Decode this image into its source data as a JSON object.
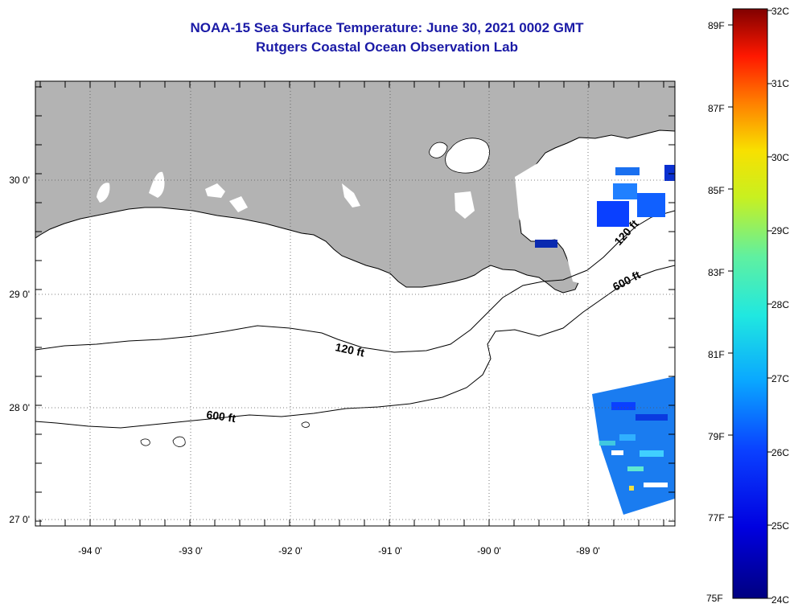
{
  "title": "NOAA-15 Sea Surface Temperature:  June 30, 2021 0002 GMT",
  "subtitle": "Rutgers Coastal Ocean Observation Lab",
  "map": {
    "lat_labels": [
      "30 0'",
      "29 0'",
      "28 0'",
      "27 0'"
    ],
    "lon_labels": [
      "-94 0'",
      "-93 0'",
      "-92 0'",
      "-91 0'",
      "-90 0'",
      "-89 0'"
    ],
    "contour_labels": [
      "120 ft",
      "600 ft",
      "120 ft",
      "600 ft"
    ],
    "land_color": "#b3b3b3",
    "cloud_color": "#ffffff"
  },
  "colorbar": {
    "fahrenheit_labels": [
      "89F",
      "87F",
      "85F",
      "83F",
      "81F",
      "79F",
      "77F",
      "75F"
    ],
    "celsius_labels": [
      "32C",
      "31C",
      "30C",
      "29C",
      "28C",
      "27C",
      "26C",
      "25C",
      "24C"
    ],
    "range_c": [
      24,
      32
    ]
  }
}
